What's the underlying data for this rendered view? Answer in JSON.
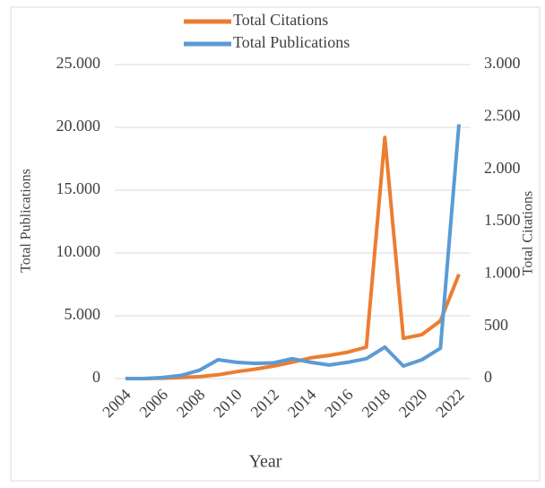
{
  "chart_data": {
    "type": "line",
    "xlabel": "Year",
    "ylabel": "Total Publications",
    "y2label": "Total Citations",
    "categories": [
      "2004",
      null,
      "2006",
      null,
      "2008",
      null,
      "2010",
      null,
      "2012",
      null,
      "2014",
      null,
      "2016",
      null,
      "2018",
      null,
      "2020",
      null,
      "2022"
    ],
    "series": [
      {
        "name": "Total Citations",
        "color": "#ed7d31",
        "values": [
          0,
          0,
          30,
          80,
          150,
          300,
          550,
          750,
          1000,
          1300,
          1650,
          1850,
          2100,
          2500,
          19200,
          3200,
          3500,
          4600,
          8300
        ]
      },
      {
        "name": "Total Publications",
        "color": "#5b9bd5",
        "axis": "y2",
        "values": [
          0,
          0,
          10,
          30,
          80,
          180,
          155,
          145,
          150,
          190,
          155,
          130,
          155,
          190,
          300,
          120,
          180,
          290,
          2430
        ]
      }
    ],
    "ylim": [
      0,
      25000
    ],
    "yticks": [
      0,
      {
        "value": 5000,
        "label": "5.000"
      },
      {
        "value": 10000,
        "label": "10.000"
      },
      {
        "value": 15000,
        "label": "15.000"
      },
      {
        "value": 20000,
        "label": "20.000"
      },
      {
        "value": 25000,
        "label": "25.000"
      }
    ],
    "y2lim": [
      0,
      3000
    ],
    "y2ticks": [
      0,
      500,
      {
        "value": 1000,
        "label": "1.000"
      },
      {
        "value": 1500,
        "label": "1.500"
      },
      {
        "value": 2000,
        "label": "2.000"
      },
      {
        "value": 2500,
        "label": "2.500"
      },
      {
        "value": 3000,
        "label": "3.000"
      }
    ],
    "grid": true
  }
}
